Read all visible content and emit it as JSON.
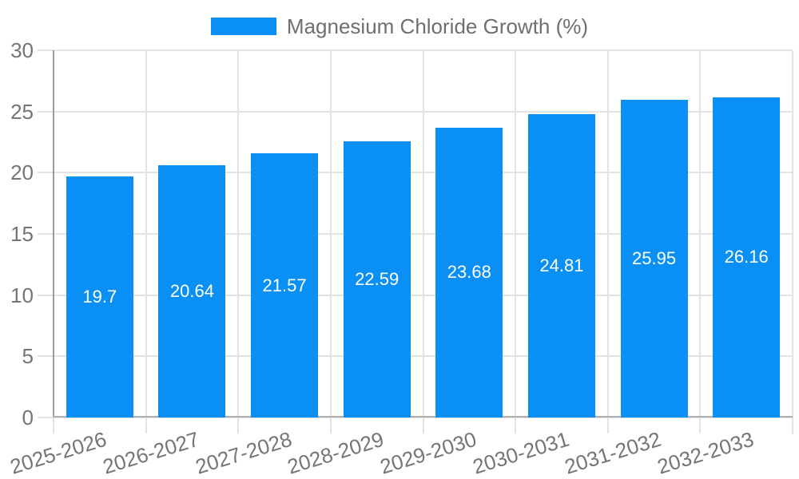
{
  "legend": {
    "label": "Magnesium Chloride Growth (%)"
  },
  "chart_data": {
    "type": "bar",
    "title": "Magnesium Chloride Growth (%)",
    "series_name": "Magnesium Chloride Growth (%)",
    "categories": [
      "2025-2026",
      "2026-2027",
      "2027-2028",
      "2028-2029",
      "2029-2030",
      "2030-2031",
      "2031-2032",
      "2032-2033"
    ],
    "values": [
      19.7,
      20.64,
      21.57,
      22.59,
      23.68,
      24.81,
      25.95,
      26.16
    ],
    "value_labels": [
      "19.7",
      "20.64",
      "21.57",
      "22.59",
      "23.68",
      "24.81",
      "25.95",
      "26.16"
    ],
    "xlabel": "",
    "ylabel": "",
    "ylim": [
      0,
      30
    ],
    "ytick_step": 5,
    "ytick_labels": [
      "0",
      "5",
      "10",
      "15",
      "20",
      "25",
      "30"
    ],
    "grid": true,
    "legend_position": "top",
    "bar_color": "#0a90f5",
    "value_label_color": "#ffffff",
    "axis_text_color": "#757575",
    "gridline_color": "#e3e3e3",
    "x_label_rotation_deg": -17
  }
}
